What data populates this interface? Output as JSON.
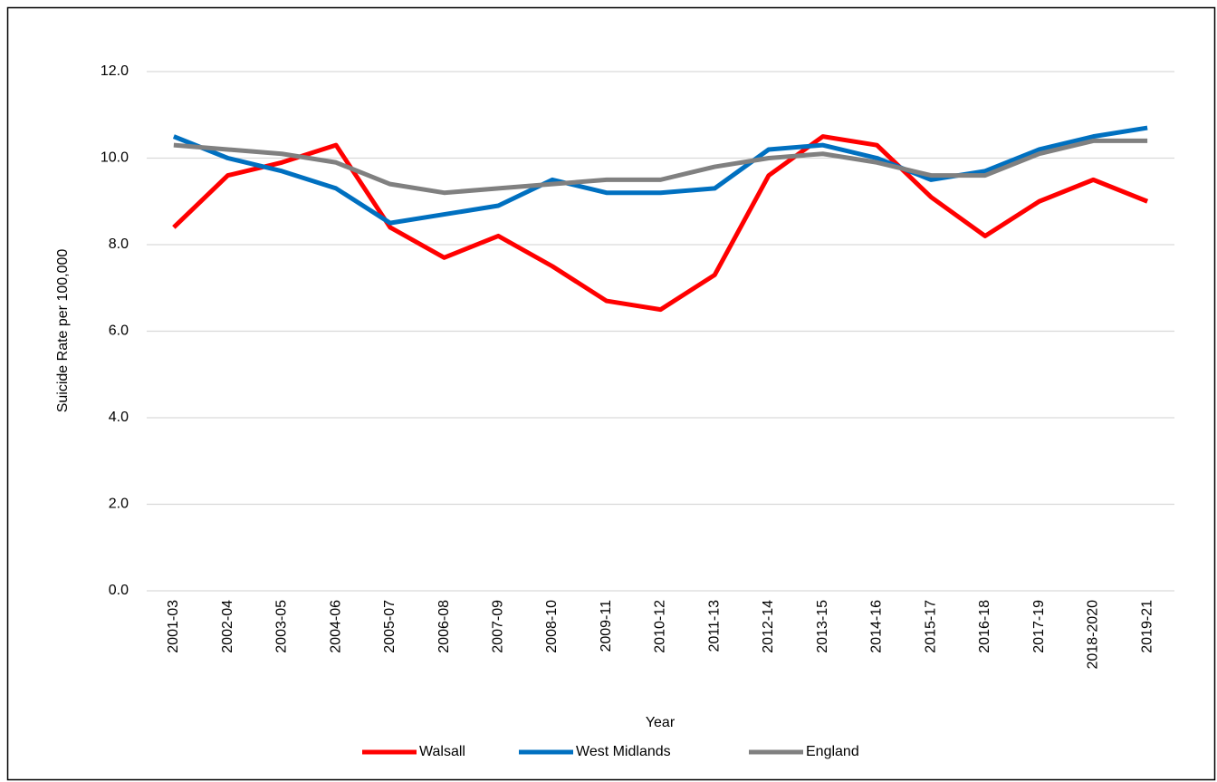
{
  "chart_data": {
    "type": "line",
    "x_label": "Year",
    "y_label": "Suicide Rate per 100,000",
    "categories": [
      "2001-03",
      "2002-04",
      "2003-05",
      "2004-06",
      "2005-07",
      "2006-08",
      "2007-09",
      "2008-10",
      "2009-11",
      "2010-12",
      "2011-13",
      "2012-14",
      "2013-15",
      "2014-16",
      "2015-17",
      "2016-18",
      "2017-19",
      "2018-2020",
      "2019-21"
    ],
    "series": [
      {
        "name": "Walsall",
        "color": "#ff0000",
        "values": [
          8.4,
          9.6,
          9.9,
          10.3,
          8.4,
          7.7,
          8.2,
          7.5,
          6.7,
          6.5,
          7.3,
          9.6,
          10.5,
          10.3,
          9.1,
          8.2,
          9.0,
          9.5,
          9.0
        ]
      },
      {
        "name": "West Midlands",
        "color": "#0070c0",
        "values": [
          10.5,
          10.0,
          9.7,
          9.3,
          8.5,
          8.7,
          8.9,
          9.5,
          9.2,
          9.2,
          9.3,
          10.2,
          10.3,
          10.0,
          9.5,
          9.7,
          10.2,
          10.5,
          10.7
        ]
      },
      {
        "name": "England",
        "color": "#808080",
        "values": [
          10.3,
          10.2,
          10.1,
          9.9,
          9.4,
          9.2,
          9.3,
          9.4,
          9.5,
          9.5,
          9.8,
          10.0,
          10.1,
          9.9,
          9.6,
          9.6,
          10.1,
          10.4,
          10.4
        ]
      }
    ],
    "ylim": [
      0,
      12
    ],
    "yticks": [
      {
        "value": 0,
        "label": "0.0"
      },
      {
        "value": 2,
        "label": "2.0"
      },
      {
        "value": 4,
        "label": "4.0"
      },
      {
        "value": 6,
        "label": "6.0"
      },
      {
        "value": 8,
        "label": "8.0"
      },
      {
        "value": 10,
        "label": "10.0"
      },
      {
        "value": 12,
        "label": "12.0"
      }
    ],
    "grid": true,
    "legend": "bottom"
  }
}
